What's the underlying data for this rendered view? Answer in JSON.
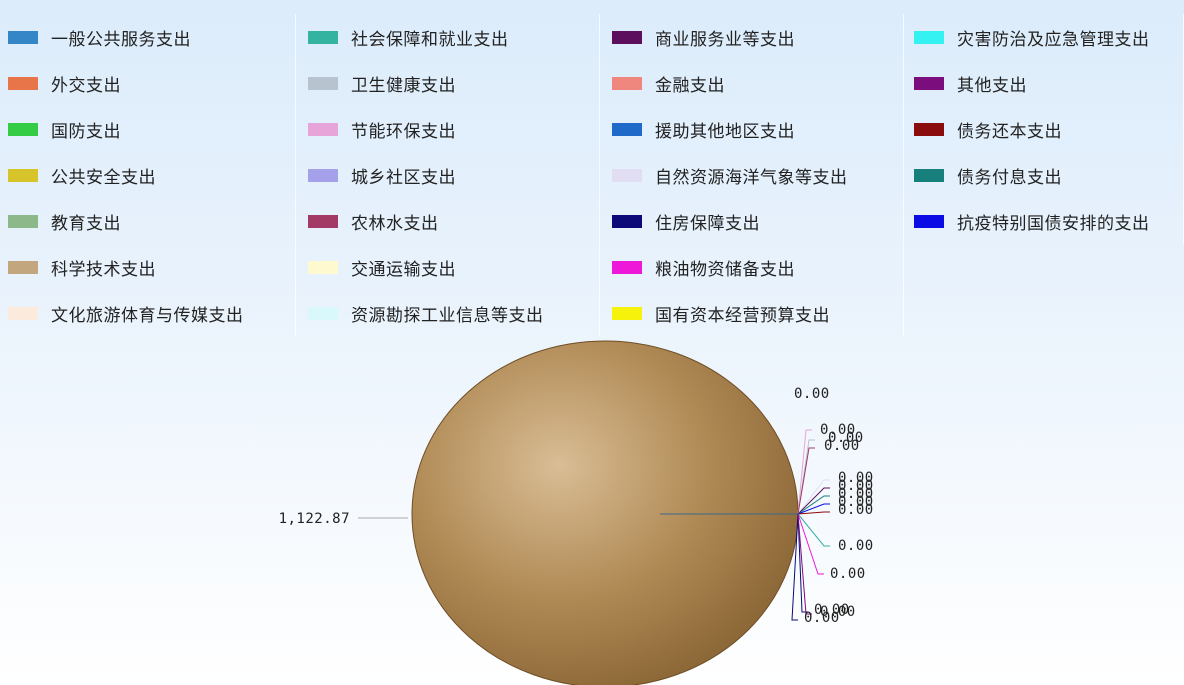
{
  "chart_data": {
    "type": "pie",
    "legend_placement": "top",
    "series": [
      {
        "name": "一般公共服务支出",
        "value": 0.0,
        "color": "#3586c6"
      },
      {
        "name": "外交支出",
        "value": 0.0,
        "color": "#e8744a"
      },
      {
        "name": "国防支出",
        "value": 0.0,
        "color": "#33cc44"
      },
      {
        "name": "公共安全支出",
        "value": 0.0,
        "color": "#d7c42b"
      },
      {
        "name": "教育支出",
        "value": 0.0,
        "color": "#8db88a"
      },
      {
        "name": "科学技术支出",
        "value": 0.0,
        "color": "#c2a67e"
      },
      {
        "name": "文化旅游体育与传媒支出",
        "value": 0.0,
        "color": "#fcebdd"
      },
      {
        "name": "社会保障和就业支出",
        "value": 0.0,
        "color": "#33b3a0"
      },
      {
        "name": "卫生健康支出",
        "value": 0.0,
        "color": "#b7c3cf"
      },
      {
        "name": "节能环保支出",
        "value": 0.0,
        "color": "#e7a4d8"
      },
      {
        "name": "城乡社区支出",
        "value": 0.0,
        "color": "#a5a0ea"
      },
      {
        "name": "农林水支出",
        "value": 0.0,
        "color": "#a33a66"
      },
      {
        "name": "交通运输支出",
        "value": 0.0,
        "color": "#fff9cf"
      },
      {
        "name": "资源勘探工业信息等支出",
        "value": 0.0,
        "color": "#d8f8fc"
      },
      {
        "name": "商业服务业等支出",
        "value": 0.0,
        "color": "#5c0f5c"
      },
      {
        "name": "金融支出",
        "value": 0.0,
        "color": "#f0877e"
      },
      {
        "name": "援助其他地区支出",
        "value": 0.0,
        "color": "#1f6ac9"
      },
      {
        "name": "自然资源海洋气象等支出",
        "value": 0.0,
        "color": "#e1def4"
      },
      {
        "name": "住房保障支出",
        "value": 0.0,
        "color": "#0b0a78"
      },
      {
        "name": "粮油物资储备支出",
        "value": 0.0,
        "color": "#ee19d8"
      },
      {
        "name": "国有资本经营预算支出",
        "value": 1122.87,
        "color": "#f6f20b"
      },
      {
        "name": "灾害防治及应急管理支出",
        "value": 0.0,
        "color": "#34f2f2"
      },
      {
        "name": "其他支出",
        "value": 0.0,
        "color": "#7c0d7c"
      },
      {
        "name": "债务还本支出",
        "value": 0.0,
        "color": "#8a0c0c"
      },
      {
        "name": "债务付息支出",
        "value": 0.0,
        "color": "#17807c"
      },
      {
        "name": "抗疫特别国债安排的支出",
        "value": 0.0,
        "color": "#0b0be6"
      }
    ],
    "pie_fill_color": "#a8824e",
    "data_labels": {
      "main": "1,122.87",
      "zeros": [
        "0.00",
        "0.00",
        "0.00",
        "0.00",
        "0.00",
        "0.00",
        "0.00",
        "0.00",
        "0.00",
        "0.00",
        "0.00",
        "0.00",
        "0.00",
        "0.00"
      ]
    }
  }
}
